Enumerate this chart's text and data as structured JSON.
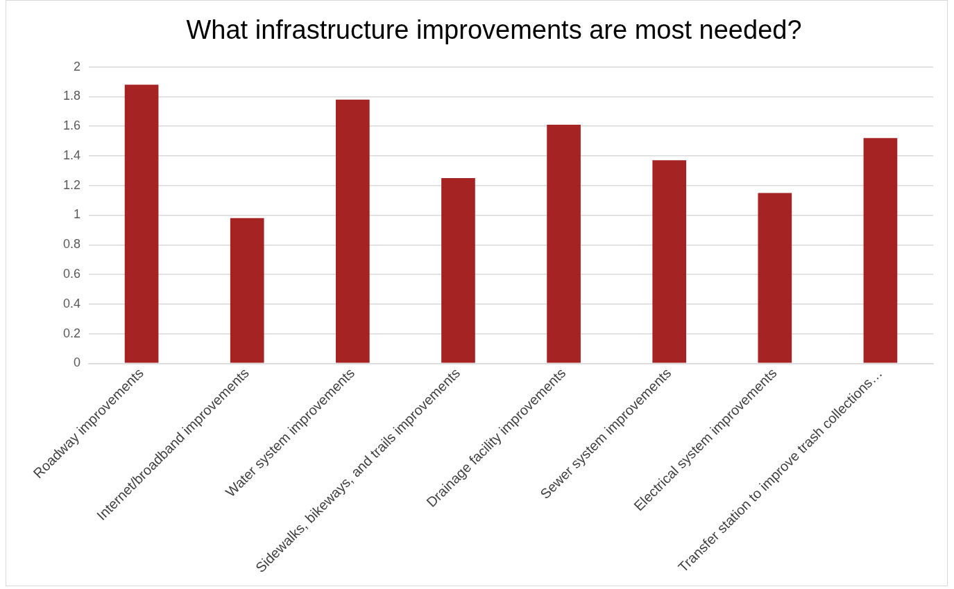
{
  "chart_data": {
    "type": "bar",
    "title": "What infrastructure improvements are most needed?",
    "categories": [
      "Roadway improvements",
      "Internet/broadband improvements",
      "Water system improvements",
      "Sidewalks, bikeways, and trails improvements",
      "Drainage facility improvements",
      "Sewer system improvements",
      "Electrical system improvements",
      "Transfer station to improve trash collections…"
    ],
    "values": [
      1.88,
      0.98,
      1.78,
      1.25,
      1.61,
      1.37,
      1.15,
      1.52
    ],
    "color": "#a52423",
    "ylim": [
      0,
      2
    ],
    "yticks": [
      0,
      {
        "value": 0.2,
        "label": "0.2"
      },
      {
        "value": 0.4,
        "label": "0.4"
      },
      {
        "value": 0.6,
        "label": "0.6"
      },
      {
        "value": 0.8,
        "label": "0.8"
      },
      1,
      {
        "value": 1.2,
        "label": "1.2"
      },
      {
        "value": 1.4,
        "label": "1.4"
      },
      {
        "value": 1.6,
        "label": "1.6"
      },
      {
        "value": 1.8,
        "label": "1.8"
      },
      2
    ],
    "grid": "y",
    "legend": false
  }
}
